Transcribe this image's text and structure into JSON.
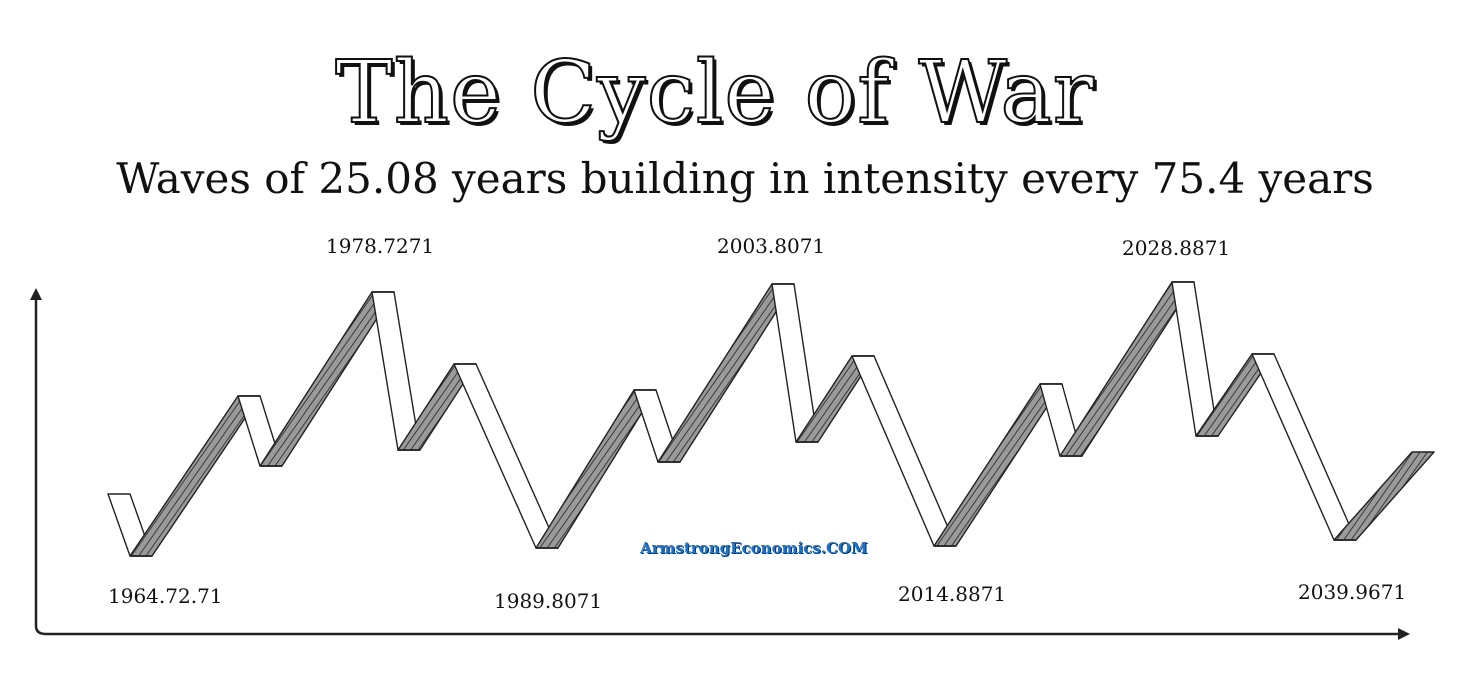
{
  "title": "The Cycle of War",
  "subtitle": "Waves of 25.08 years building in intensity every 75.4 years",
  "peaks": [
    {
      "label": "1978.7271"
    },
    {
      "label": "2003.8071"
    },
    {
      "label": "2028.8871"
    }
  ],
  "troughs": [
    {
      "label": "1964.72.71"
    },
    {
      "label": "1989.8071"
    },
    {
      "label": "2014.8871"
    },
    {
      "label": "2039.9671"
    }
  ],
  "watermark": "ArmstrongEconomics.COM",
  "colors": {
    "ink": "#111111",
    "ribbon_shade": "#8a8a8a",
    "ribbon_light": "#ffffff",
    "watermark": "#1e73c8"
  }
}
